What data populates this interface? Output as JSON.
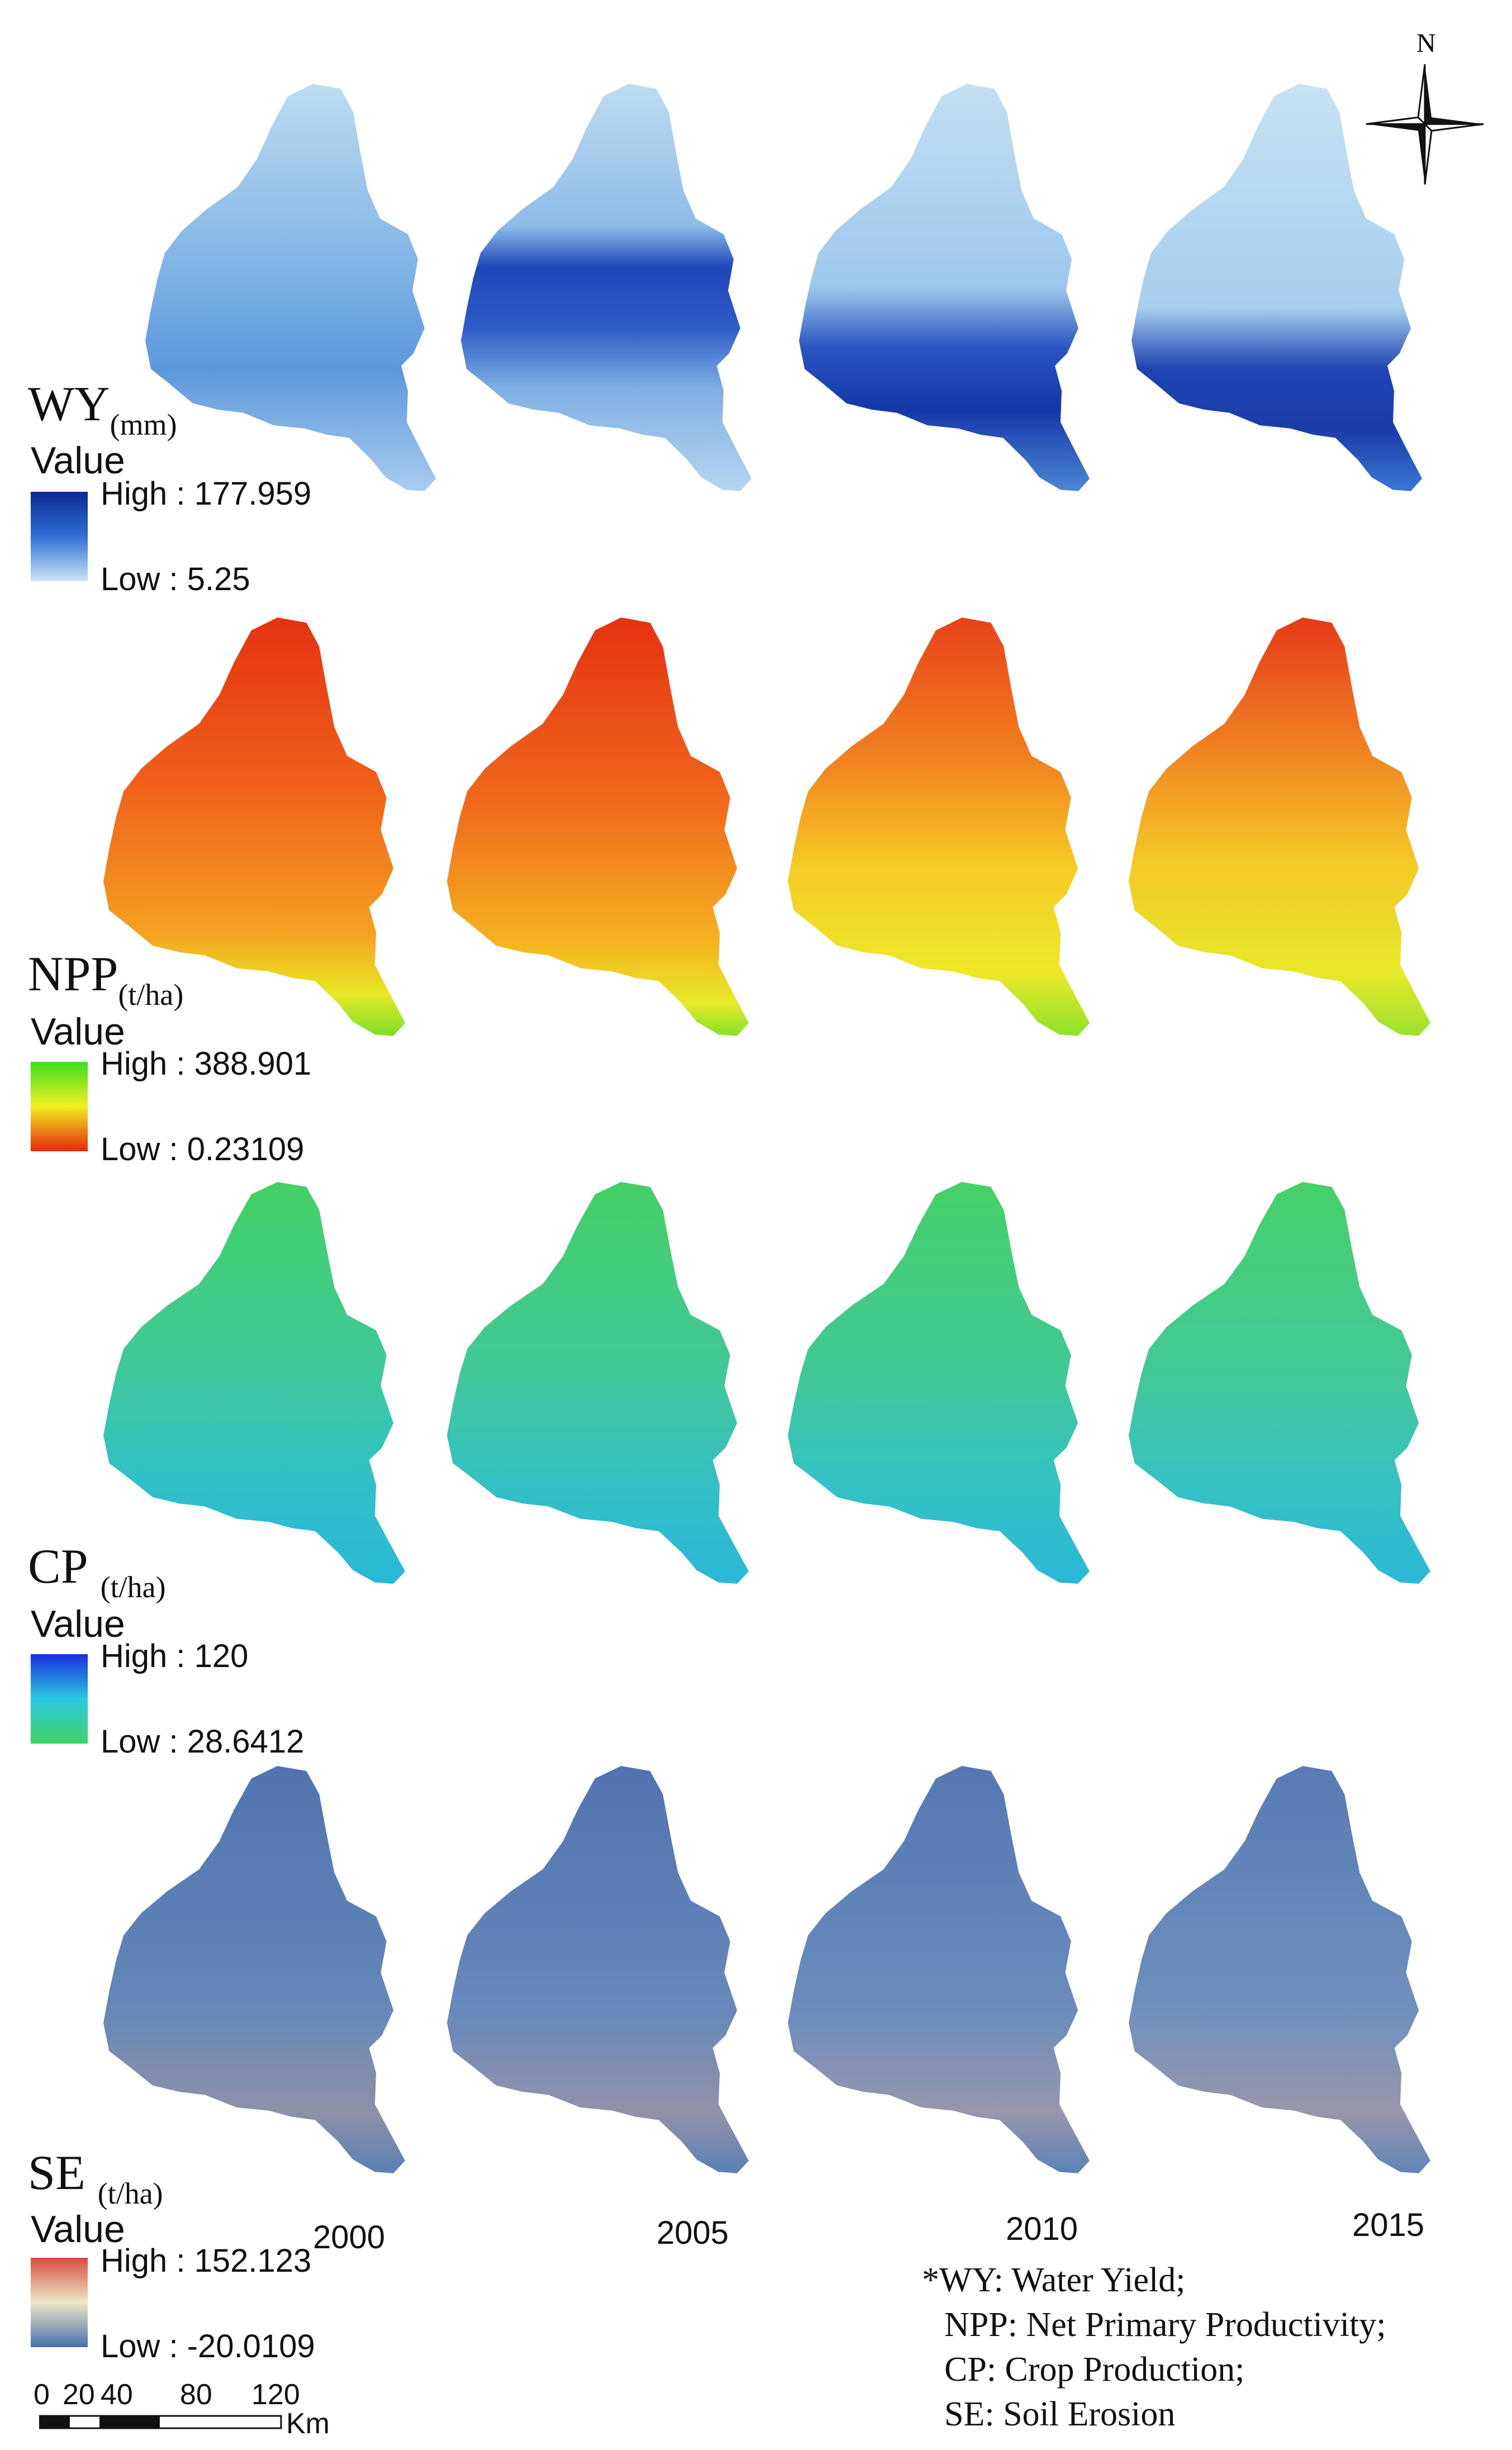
{
  "north_arrow": {
    "letter": "N"
  },
  "rows": [
    {
      "key": "wy",
      "label": "WY",
      "unit": "(mm)",
      "value_label": "Value",
      "high": "High : 177.959",
      "low": "Low : 5.25",
      "colors": [
        "#0b2a8f",
        "#2f6fd6",
        "#c9e6f5"
      ]
    },
    {
      "key": "npp",
      "label": "NPP",
      "unit": "(t/ha)",
      "value_label": "Value",
      "high": "High : 388.901",
      "low": "Low : 0.23109",
      "colors": [
        "#3ee020",
        "#f2ee20",
        "#e8260d"
      ]
    },
    {
      "key": "cp",
      "label": "CP",
      "unit": "(t/ha)",
      "value_label": "Value",
      "high": "High : 120",
      "low": "Low : 28.6412",
      "colors": [
        "#1a2fe0",
        "#2ac8e0",
        "#3fd264"
      ]
    },
    {
      "key": "se",
      "label": "SE",
      "unit": "(t/ha)",
      "value_label": "Value",
      "high": "High : 152.123",
      "low": "Low : -20.0109",
      "colors": [
        "#d84c40",
        "#ece8c4",
        "#4a6fae"
      ]
    }
  ],
  "years": [
    "2000",
    "2005",
    "2010",
    "2015"
  ],
  "note_lines": [
    "*WY: Water Yield;",
    "NPP: Net Primary Productivity;",
    "CP: Crop Production;",
    "SE: Soil Erosion"
  ],
  "scale_bar": {
    "ticks": [
      "0",
      "20",
      "40",
      "80",
      "120"
    ],
    "unit": "Km"
  }
}
